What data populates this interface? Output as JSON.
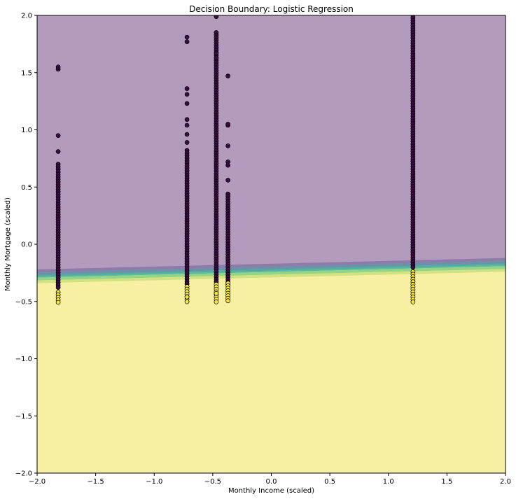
{
  "chart_data": {
    "type": "scatter",
    "title": "Decision Boundary: Logistic Regression",
    "xlabel": "Monthly Income (scaled)",
    "ylabel": "Monthly Mortgage (scaled)",
    "xlim": [
      -2.0,
      2.0
    ],
    "ylim": [
      -2.0,
      2.0
    ],
    "x_ticks": [
      "−2.0",
      "−1.5",
      "−1.0",
      "−0.5",
      "0.0",
      "0.5",
      "1.0",
      "1.5",
      "2.0"
    ],
    "y_ticks": [
      "−2.0",
      "−1.5",
      "−1.0",
      "−0.5",
      "0.0",
      "0.5",
      "1.0",
      "1.5",
      "2.0"
    ],
    "grid": false,
    "legend": "none",
    "regions": {
      "class0_color": "#b39bbd",
      "class1_color": "#f7f0a2",
      "transition_colors": [
        "#8a74a6",
        "#5f8fa6",
        "#3fb0a0",
        "#7fcf86",
        "#c9e07a"
      ],
      "boundary_left_y": -0.28,
      "boundary_right_y": -0.18,
      "boundary_width": 0.12
    },
    "marker_colors": {
      "class0": "#3b0a45",
      "class1": "#f4e43a",
      "edge": "#000000"
    },
    "columns": [
      {
        "x": -1.82,
        "class0_y_min": -0.38,
        "class0_y_max": 0.7,
        "class1_y_min": -0.51,
        "class1_y_max": -0.42,
        "class0_outliers": [
          0.81,
          0.95,
          1.53,
          1.55
        ]
      },
      {
        "x": -0.72,
        "class0_y_min": -0.36,
        "class0_y_max": 0.82,
        "class1_y_min": -0.51,
        "class1_y_max": -0.37,
        "class0_outliers": [
          0.89,
          0.96,
          1.04,
          1.09,
          1.23,
          1.31,
          1.36,
          1.77,
          1.81
        ]
      },
      {
        "x": -0.47,
        "class0_y_min": -0.34,
        "class0_y_max": 1.85,
        "class1_y_min": -0.51,
        "class1_y_max": -0.35,
        "class0_outliers": [
          1.99,
          1.63,
          1.67
        ]
      },
      {
        "x": -0.37,
        "class0_y_min": -0.37,
        "class0_y_max": 0.44,
        "class1_y_min": -0.51,
        "class1_y_max": -0.34,
        "class0_outliers": [
          0.56,
          0.69,
          0.72,
          0.86,
          1.04,
          1.05,
          1.47
        ]
      },
      {
        "x": 1.21,
        "class0_y_min": -0.22,
        "class0_y_max": 2.0,
        "class1_y_min": -0.51,
        "class1_y_max": -0.24,
        "class0_outliers": []
      }
    ],
    "class1_intrusions": [
      {
        "x": -0.47,
        "y": -0.43
      },
      {
        "x": -0.72,
        "y": -0.46
      }
    ]
  }
}
